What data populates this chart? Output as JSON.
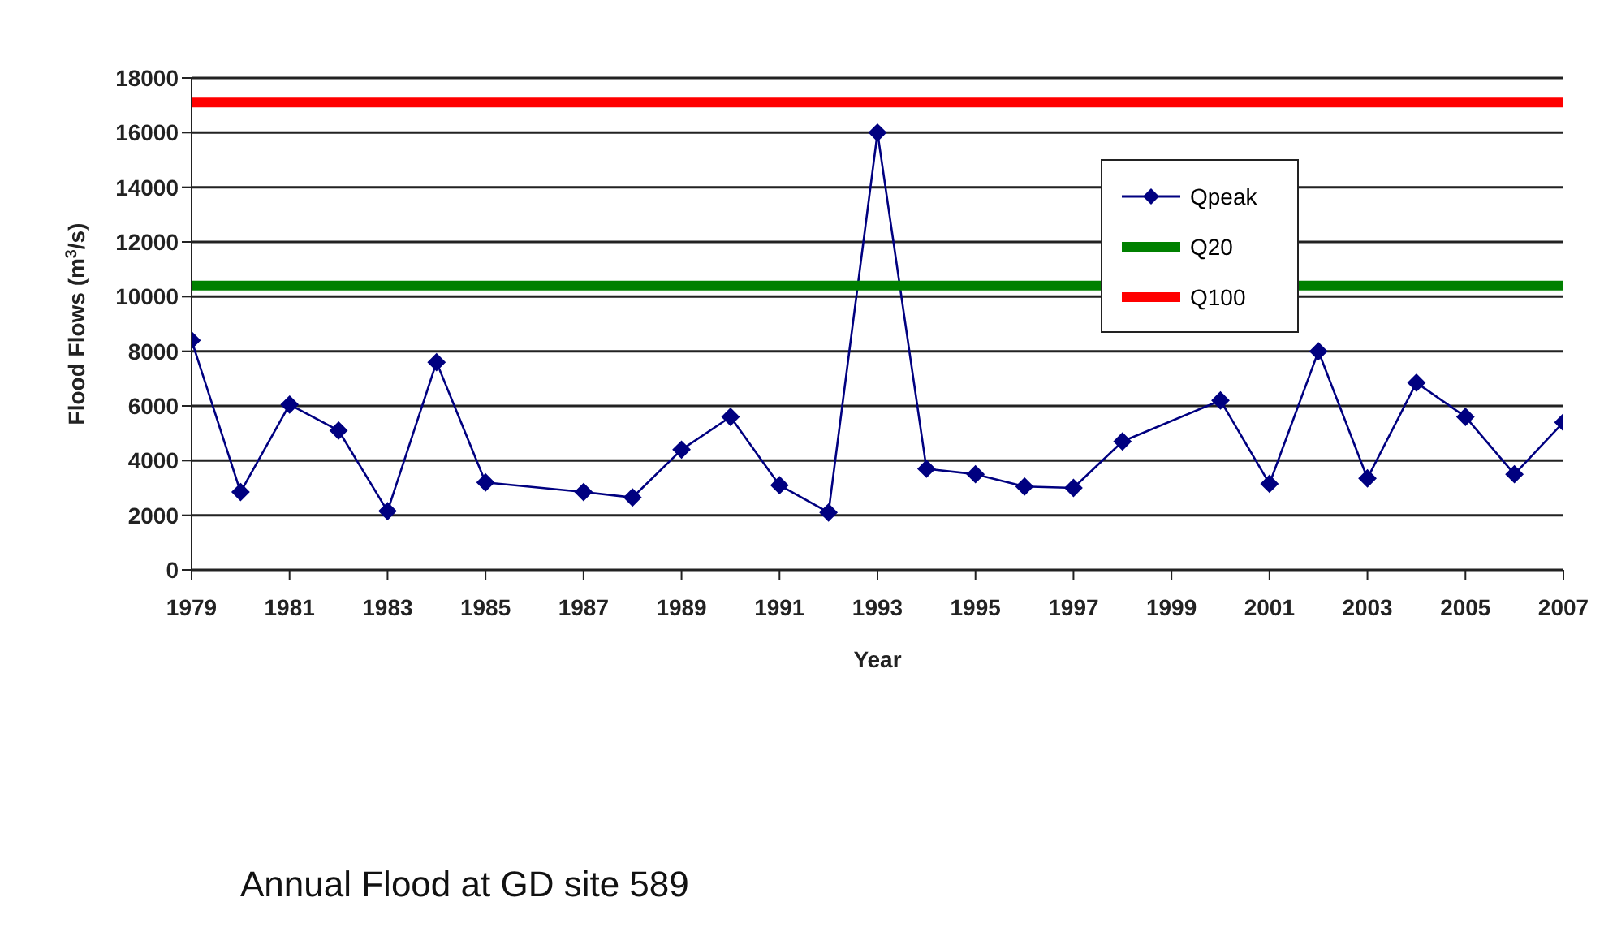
{
  "chart_data": {
    "type": "line",
    "xlabel": "Year",
    "ylabel": "Flood Flows (m$^{3}$/s)",
    "annotations": [
      "Annual Flood at GD site 589"
    ],
    "xlim": [
      1979,
      2007
    ],
    "xticks": [
      1979,
      1981,
      1983,
      1985,
      1987,
      1989,
      1991,
      1993,
      1995,
      1997,
      1999,
      2001,
      2003,
      2005,
      2007
    ],
    "ylim": [
      0,
      18000
    ],
    "yticks": [
      0,
      2000,
      4000,
      6000,
      8000,
      10000,
      12000,
      14000,
      16000,
      18000
    ],
    "grid": "y",
    "legend": "top right",
    "marker": "diamond",
    "line_style": "solid",
    "series": [
      {
        "name": "Qpeak",
        "color": "#000080",
        "x": [
          1979,
          1980,
          1981,
          1982,
          1983,
          1984,
          1985,
          1987,
          1988,
          1989,
          1990,
          1991,
          1992,
          1993,
          1994,
          1995,
          1996,
          1997,
          1998,
          2000,
          2001,
          2002,
          2003,
          2004,
          2005,
          2006,
          2007
        ],
        "values": [
          8400,
          2850,
          6050,
          5100,
          2150,
          7600,
          3200,
          2850,
          2650,
          4400,
          5600,
          3100,
          2100,
          16000,
          3700,
          3500,
          3050,
          3000,
          4700,
          6200,
          3150,
          8000,
          3350,
          6850,
          5600,
          3500,
          5400
        ]
      },
      {
        "name": "Q20",
        "color": "#008000",
        "marker": "none",
        "x": [
          1979,
          2007
        ],
        "values": [
          10400,
          10400
        ]
      },
      {
        "name": "Q100",
        "color": "#ff0000",
        "marker": "none",
        "x": [
          1979,
          2007
        ],
        "values": [
          17100,
          17100
        ]
      }
    ]
  }
}
